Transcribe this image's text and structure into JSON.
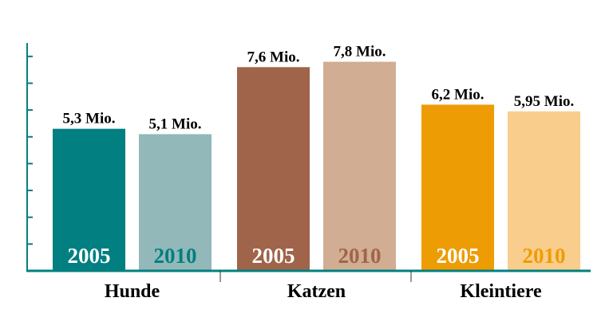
{
  "chart_data": {
    "type": "bar",
    "categories": [
      "Hunde",
      "Katzen",
      "Kleintiere"
    ],
    "series": [
      {
        "name": "2005",
        "values": [
          5.3,
          7.6,
          6.2
        ]
      },
      {
        "name": "2010",
        "values": [
          5.1,
          7.8,
          5.95
        ]
      }
    ],
    "data_labels": [
      [
        "5,3 Mio.",
        "5,1 Mio."
      ],
      [
        "7,6 Mio.",
        "7,8 Mio."
      ],
      [
        "6,2 Mio.",
        "5,95 Mio."
      ]
    ],
    "ylim": [
      0,
      8.5
    ],
    "y_tick_step": 1,
    "grid": false,
    "legend": "none",
    "colors": {
      "bars": [
        [
          "#027f80",
          "#93b8b9"
        ],
        [
          "#a0644a",
          "#d1ad93"
        ],
        [
          "#ee9c04",
          "#f9cd8c"
        ]
      ],
      "year_text": [
        [
          "#ffffff",
          "#027f80"
        ],
        [
          "#ffffff",
          "#a0644a"
        ],
        [
          "#ffffff",
          "#ee9c04"
        ]
      ],
      "axis": "#027f80",
      "separator": "#333333"
    }
  }
}
